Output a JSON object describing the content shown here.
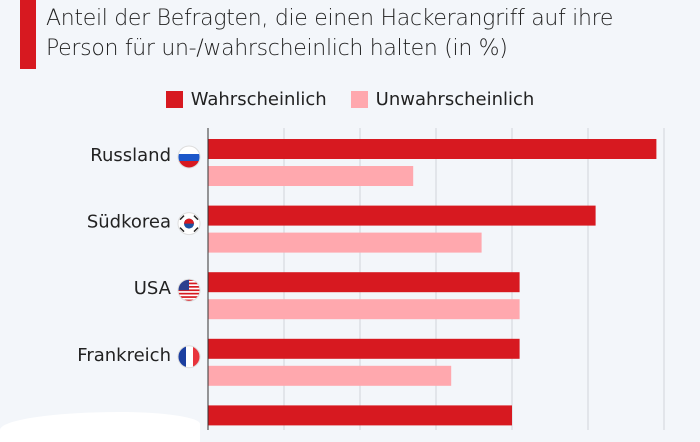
{
  "chart_data": {
    "type": "bar",
    "orientation": "horizontal",
    "title": "Anteil der Befragten, die einen Hackerangriff auf ihre Person für un-/wahrscheinlich halten (in %)",
    "categories": [
      "Russland",
      "Südkorea",
      "USA",
      "Frankreich",
      ""
    ],
    "category_icons": [
      "flag-russia-icon",
      "flag-south-korea-icon",
      "flag-usa-icon",
      "flag-france-icon",
      ""
    ],
    "series": [
      {
        "name": "Wahrscheinlich",
        "color": "#d71920",
        "values": [
          59,
          51,
          41,
          41,
          40
        ]
      },
      {
        "name": "Unwahrscheinlich",
        "color": "#ffa8ae",
        "values": [
          27,
          36,
          41,
          32,
          null
        ]
      }
    ],
    "xlim": [
      0,
      60
    ],
    "grid": true,
    "legend_position": "top"
  }
}
